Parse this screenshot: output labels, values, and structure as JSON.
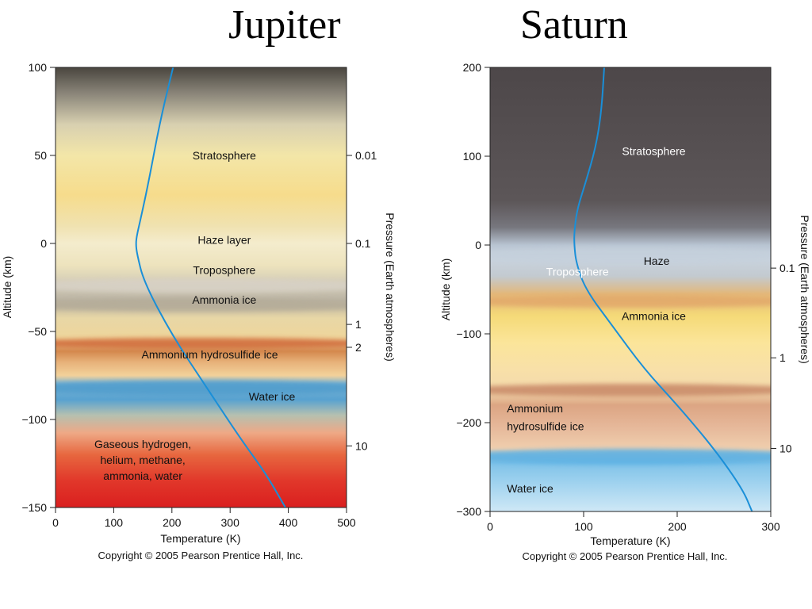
{
  "chart_data": [
    {
      "type": "line",
      "title": "Jupiter",
      "xlabel": "Temperature (K)",
      "ylabel": "Altitude (km)",
      "y2label": "Pressure (Earth atmospheres)",
      "xlim": [
        0,
        500
      ],
      "ylim": [
        -150,
        100
      ],
      "x_ticks": [
        0,
        100,
        200,
        300,
        400,
        500
      ],
      "y_ticks": [
        100,
        50,
        0,
        -50,
        -100,
        -150
      ],
      "y_tick_labels": [
        "100",
        "50",
        "0",
        "−50",
        "−100",
        "−150"
      ],
      "pressure_ticks": [
        {
          "label": "0.01",
          "altitude": 50
        },
        {
          "label": "0.1",
          "altitude": 0
        },
        {
          "label": "1",
          "altitude": -46
        },
        {
          "label": "2",
          "altitude": -59
        },
        {
          "label": "10",
          "altitude": -115
        }
      ],
      "layers": [
        {
          "label": "Stratosphere",
          "altitude": 50,
          "temperature": 290,
          "color": "#111111"
        },
        {
          "label": "Haze layer",
          "altitude": 2,
          "temperature": 290,
          "color": "#111111"
        },
        {
          "label": "Troposphere",
          "altitude": -15,
          "temperature": 290,
          "color": "#111111"
        },
        {
          "label": "Ammonia ice",
          "altitude": -32,
          "temperature": 290,
          "color": "#111111"
        },
        {
          "label": "Ammonium hydrosulfide ice",
          "altitude": -63,
          "temperature": 265,
          "color": "#111111"
        },
        {
          "label": "Water ice",
          "altitude": -87,
          "temperature": 372,
          "color": "#111111"
        },
        {
          "label": "Gaseous hydrogen,",
          "altitude": -114,
          "temperature": 150,
          "color": "#111111"
        },
        {
          "label": "helium, methane,",
          "altitude": -123,
          "temperature": 150,
          "color": "#111111"
        },
        {
          "label": "ammonia, water",
          "altitude": -132,
          "temperature": 150,
          "color": "#111111"
        }
      ],
      "series": [
        {
          "points": [
            [
              202,
              100
            ],
            [
              180,
              70
            ],
            [
              160,
              35
            ],
            [
              147,
              15
            ],
            [
              140,
              5
            ],
            [
              138,
              0
            ],
            [
              140,
              -6
            ],
            [
              152,
              -22
            ],
            [
              200,
              -52
            ],
            [
              260,
              -82
            ],
            [
              320,
              -112
            ],
            [
              360,
              -130
            ],
            [
              395,
              -150
            ]
          ]
        }
      ],
      "copyright": "Copyright © 2005 Pearson Prentice Hall, Inc."
    },
    {
      "type": "line",
      "title": "Saturn",
      "xlabel": "Temperature (K)",
      "ylabel": "Altitude (km)",
      "y2label": "Pressure (Earth atmospheres)",
      "xlim": [
        0,
        300
      ],
      "ylim": [
        -300,
        200
      ],
      "x_ticks": [
        0,
        100,
        200,
        300
      ],
      "y_ticks": [
        200,
        100,
        0,
        -100,
        -200,
        -300
      ],
      "y_tick_labels": [
        "200",
        "100",
        "0",
        "−100",
        "−200",
        "−300"
      ],
      "pressure_ticks": [
        {
          "label": "0.1",
          "altitude": -26
        },
        {
          "label": "1",
          "altitude": -127
        },
        {
          "label": "10",
          "altitude": -229
        }
      ],
      "layers": [
        {
          "label": "Stratosphere",
          "altitude": 106,
          "temperature": 175,
          "color": "#ffffff"
        },
        {
          "label": "Troposphere",
          "altitude": -30,
          "temperature": 60,
          "color": "#ffffff"
        },
        {
          "label": "Haze",
          "altitude": -18,
          "temperature": 178,
          "color": "#111111"
        },
        {
          "label": "Ammonia ice",
          "altitude": -80,
          "temperature": 175,
          "color": "#111111"
        },
        {
          "label": "Ammonium",
          "altitude": -184,
          "temperature": 18,
          "color": "#111111"
        },
        {
          "label": "hydrosulfide ice",
          "altitude": -204,
          "temperature": 18,
          "color": "#111111"
        },
        {
          "label": "Water ice",
          "altitude": -274,
          "temperature": 18,
          "color": "#111111"
        }
      ],
      "series": [
        {
          "points": [
            [
              122,
              200
            ],
            [
              119,
              150
            ],
            [
              113,
              110
            ],
            [
              102,
              70
            ],
            [
              93,
              40
            ],
            [
              90,
              15
            ],
            [
              90,
              0
            ],
            [
              92,
              -20
            ],
            [
              102,
              -50
            ],
            [
              130,
              -90
            ],
            [
              165,
              -140
            ],
            [
              200,
              -180
            ],
            [
              240,
              -230
            ],
            [
              270,
              -275
            ],
            [
              280,
              -300
            ]
          ]
        }
      ],
      "copyright": "Copyright © 2005 Pearson Prentice Hall, Inc."
    }
  ]
}
